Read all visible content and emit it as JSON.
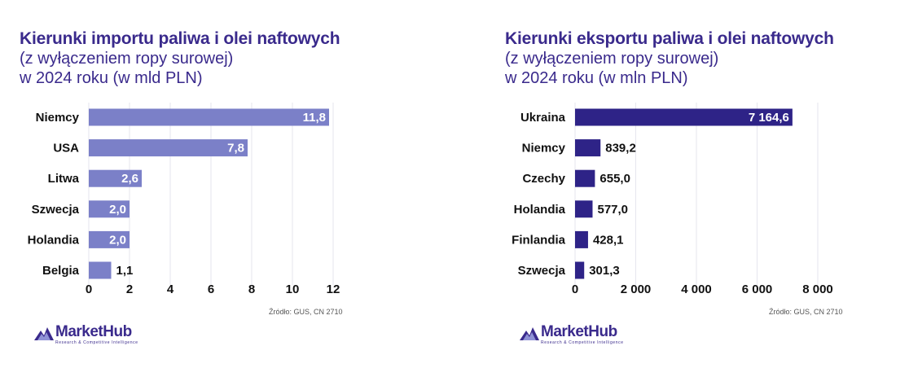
{
  "charts": [
    {
      "title": "Kierunki importu paliwa i olei naftowych",
      "subtitle1": "(z wyłączeniem ropy surowej)",
      "subtitle2": "w 2024 roku (w mld PLN)",
      "source": "Źródło: GUS, CN 2710",
      "logo": {
        "brand": "MarketHub",
        "tagline": "Research & Competitive Intelligence"
      },
      "bar_color": "#7b80c8"
    },
    {
      "title": "Kierunki eksportu paliwa i olei naftowych",
      "subtitle1": "(z wyłączeniem ropy surowej)",
      "subtitle2": "w 2024 roku (w mln PLN)",
      "source": "Źródło: GUS, CN 2710",
      "logo": {
        "brand": "MarketHub",
        "tagline": "Research & Competitive Intelligence"
      },
      "bar_color": "#2e2387"
    }
  ],
  "chart_data": [
    {
      "type": "bar",
      "orientation": "horizontal",
      "title": "Kierunki importu paliwa i olei naftowych (z wyłączeniem ropy surowej) w 2024 roku (w mld PLN)",
      "categories": [
        "Niemcy",
        "USA",
        "Litwa",
        "Szwecja",
        "Holandia",
        "Belgia"
      ],
      "values": [
        11.8,
        7.8,
        2.6,
        2.0,
        2.0,
        1.1
      ],
      "value_labels": [
        "11,8",
        "7,8",
        "2,6",
        "2,0",
        "2,0",
        "1,1"
      ],
      "xlim": [
        0,
        12
      ],
      "xticks": [
        0,
        2,
        4,
        6,
        8,
        10,
        12
      ],
      "xtick_labels": [
        "0",
        "2",
        "4",
        "6",
        "8",
        "10",
        "12"
      ],
      "grid": true,
      "xlabel": "",
      "ylabel": ""
    },
    {
      "type": "bar",
      "orientation": "horizontal",
      "title": "Kierunki eksportu paliwa i olei naftowych (z wyłączeniem ropy surowej) w 2024 roku (w mln PLN)",
      "categories": [
        "Ukraina",
        "Niemcy",
        "Czechy",
        "Holandia",
        "Finlandia",
        "Szwecja"
      ],
      "values": [
        7164.6,
        839.2,
        655.0,
        577.0,
        428.1,
        301.3
      ],
      "value_labels": [
        "7 164,6",
        "839,2",
        "655,0",
        "577,0",
        "428,1",
        "301,3"
      ],
      "xlim": [
        0,
        8000
      ],
      "xticks": [
        0,
        2000,
        4000,
        6000,
        8000
      ],
      "xtick_labels": [
        "0",
        "2 000",
        "4 000",
        "6 000",
        "8 000"
      ],
      "grid": true,
      "xlabel": "",
      "ylabel": ""
    }
  ]
}
